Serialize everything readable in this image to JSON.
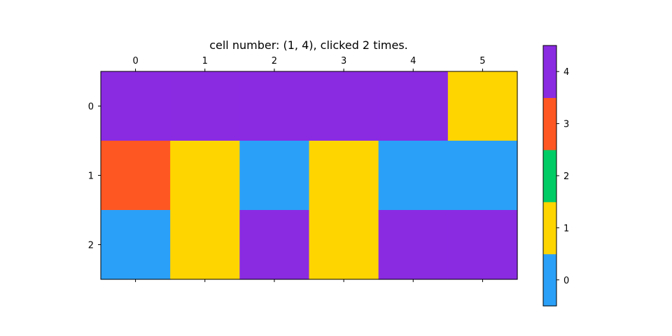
{
  "chart_data": {
    "type": "heatmap",
    "title": "cell number: (1, 4), clicked 2 times.",
    "x_ticks": [
      "0",
      "1",
      "2",
      "3",
      "4",
      "5"
    ],
    "y_ticks": [
      "0",
      "1",
      "2"
    ],
    "grid": [
      [
        4,
        4,
        4,
        4,
        4,
        1
      ],
      [
        3,
        1,
        0,
        1,
        0,
        0
      ],
      [
        0,
        1,
        4,
        1,
        4,
        4
      ]
    ],
    "colorbar": {
      "levels": [
        0,
        1,
        2,
        3,
        4
      ],
      "tick_labels": [
        "0",
        "1",
        "2",
        "3",
        "4"
      ],
      "colors": [
        "#2ba0f8",
        "#ffd500",
        "#00cc66",
        "#ff5722",
        "#8a2be2"
      ]
    },
    "grid_lines": false
  }
}
